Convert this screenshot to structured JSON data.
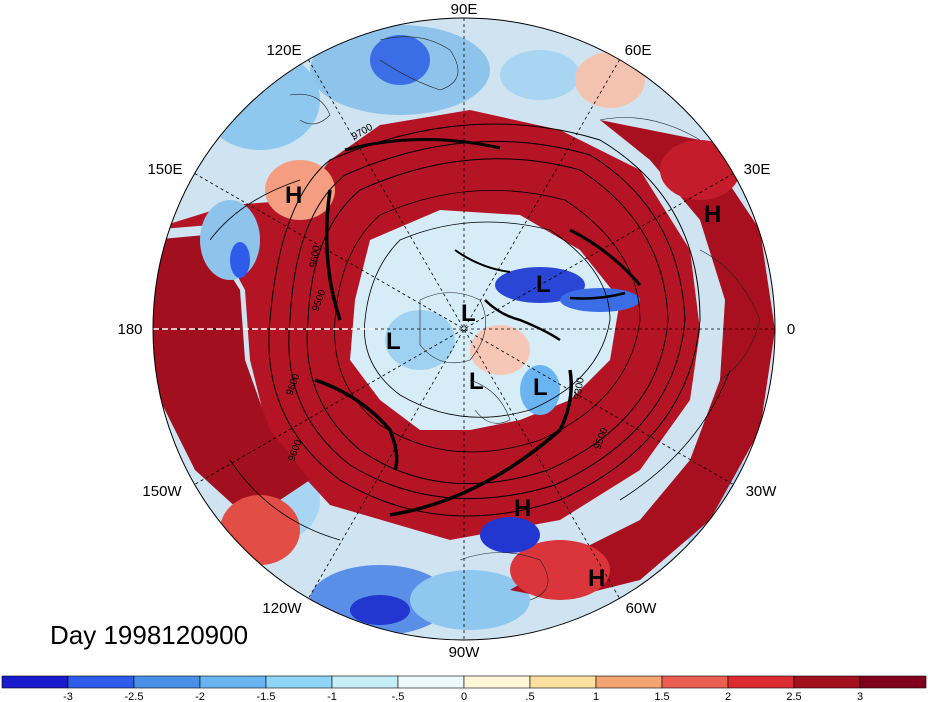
{
  "map": {
    "date_label": "Day 1998120900",
    "longitude_labels": [
      "90E",
      "60E",
      "30E",
      "0",
      "30W",
      "60W",
      "90W",
      "120W",
      "150W",
      "180",
      "150E",
      "120E"
    ],
    "pressure_markers": [
      "H",
      "H",
      "L",
      "L",
      "L",
      "L",
      "L",
      "H",
      "H"
    ],
    "contour_labels": [
      "9700",
      "9600",
      "9500",
      "9600",
      "9300",
      "9500",
      "9600"
    ]
  },
  "colorbar": {
    "tick_labels": [
      "-3",
      "-2.5",
      "-2",
      "-1.5",
      "-1",
      "-.5",
      "0",
      ".5",
      "1",
      "1.5",
      "2",
      "2.5",
      "3"
    ],
    "colors": [
      "#1a1acd",
      "#2f5bea",
      "#4a90e8",
      "#6ab4f2",
      "#8fd6f6",
      "#c6eef9",
      "#eef9fb",
      "#fdf6d8",
      "#fbe0a0",
      "#f4a373",
      "#ea5f50",
      "#dc2c32",
      "#a2101f",
      "#80001c"
    ]
  }
}
